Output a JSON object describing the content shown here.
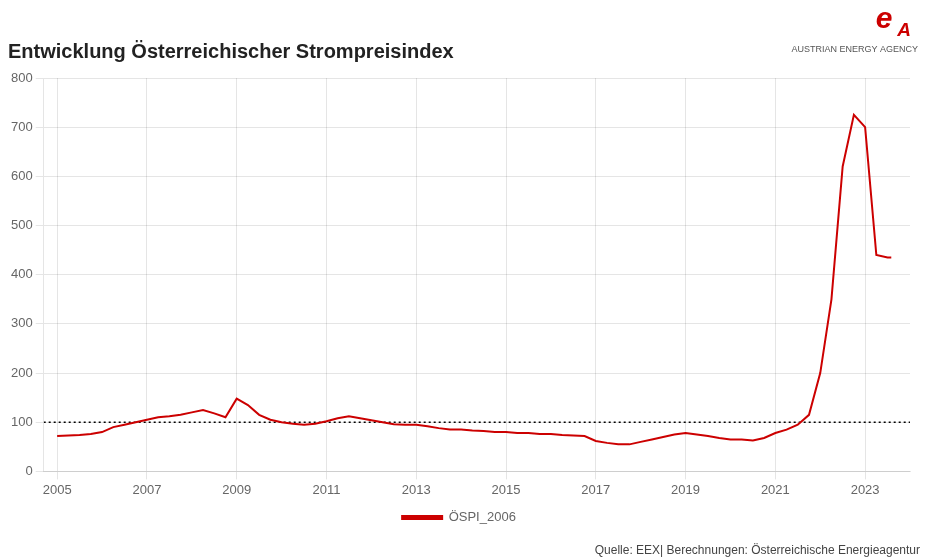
{
  "chart_data": {
    "type": "line",
    "title": "Entwicklung Österreichischer Strompreisindex",
    "x": [
      2005.0,
      2005.25,
      2005.5,
      2005.75,
      2006.0,
      2006.25,
      2006.5,
      2006.75,
      2007.0,
      2007.25,
      2007.5,
      2007.75,
      2008.0,
      2008.25,
      2008.5,
      2008.75,
      2009.0,
      2009.25,
      2009.5,
      2009.75,
      2010.0,
      2010.25,
      2010.5,
      2010.75,
      2011.0,
      2011.25,
      2011.5,
      2011.75,
      2012.0,
      2012.25,
      2012.5,
      2012.75,
      2013.0,
      2013.25,
      2013.5,
      2013.75,
      2014.0,
      2014.25,
      2014.5,
      2014.75,
      2015.0,
      2015.25,
      2015.5,
      2015.75,
      2016.0,
      2016.25,
      2016.5,
      2016.75,
      2017.0,
      2017.25,
      2017.5,
      2017.75,
      2018.0,
      2018.25,
      2018.5,
      2018.75,
      2019.0,
      2019.25,
      2019.5,
      2019.75,
      2020.0,
      2020.25,
      2020.5,
      2020.75,
      2021.0,
      2021.25,
      2021.5,
      2021.75,
      2022.0,
      2022.25,
      2022.5,
      2022.75,
      2023.0,
      2023.25,
      2023.5,
      2023.583
    ],
    "series": [
      {
        "name": "ÖSPI_2006",
        "color": "#cc0000",
        "line_style": "solid",
        "values": [
          72,
          73,
          74,
          76,
          80,
          90,
          95,
          100,
          105,
          110,
          112,
          115,
          120,
          125,
          118,
          110,
          148,
          135,
          115,
          105,
          100,
          97,
          95,
          97,
          102,
          108,
          112,
          108,
          104,
          100,
          96,
          95,
          95,
          92,
          88,
          85,
          85,
          83,
          82,
          80,
          80,
          78,
          78,
          76,
          76,
          74,
          73,
          72,
          62,
          58,
          55,
          55,
          60,
          65,
          70,
          75,
          78,
          75,
          72,
          68,
          65,
          65,
          63,
          68,
          78,
          85,
          95,
          115,
          200,
          350,
          620,
          725,
          700,
          440,
          435,
          435
        ]
      }
    ],
    "hlines": [
      {
        "y": 100,
        "color": "#000000",
        "line_style": "dotted"
      }
    ],
    "xlim": [
      2004.7,
      2024.0
    ],
    "xticks": [
      2005,
      2007,
      2009,
      2011,
      2013,
      2015,
      2017,
      2019,
      2021,
      2023
    ],
    "ylim": [
      0,
      800
    ],
    "yticks": [
      0,
      100,
      200,
      300,
      400,
      500,
      600,
      700,
      800
    ],
    "grid": true,
    "legend": "bottom",
    "annotations": [
      {
        "text": "Quelle: EEX| Berechnungen: Österreichische Energieagentur",
        "color": "#444444"
      },
      {
        "text": "AUSTRIAN ENERGY AGENCY",
        "color": "#555555"
      },
      {
        "text": "e",
        "color": "#cc0000"
      },
      {
        "text": "A",
        "color": "#cc0000"
      }
    ]
  }
}
